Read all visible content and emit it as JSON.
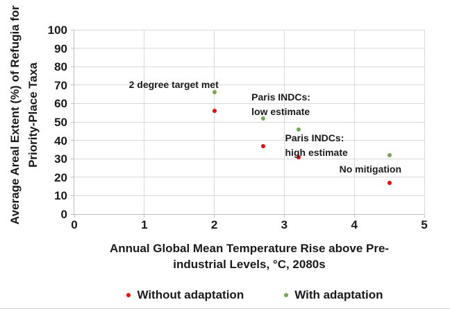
{
  "chart_data": {
    "type": "scatter",
    "title": "",
    "xlabel_lines": [
      "Annual Global Mean Temperature Rise above Pre-",
      "industrial Levels, °C, 2080s"
    ],
    "ylabel_lines": [
      "Average Areal Extent (%) of Refugia for",
      "Priority-Place Taxa"
    ],
    "xlabel": "Annual Global Mean Temperature Rise above Pre-industrial Levels, °C, 2080s",
    "ylabel": "Average Areal Extent (%) of Refugia for Priority-Place Taxa",
    "xlim": [
      0,
      5
    ],
    "ylim": [
      0,
      100
    ],
    "x_ticks": [
      0,
      1,
      2,
      3,
      4,
      5
    ],
    "y_ticks": [
      0,
      10,
      20,
      30,
      40,
      50,
      60,
      70,
      80,
      90,
      100
    ],
    "grid": true,
    "legend_position": "bottom",
    "scenarios": [
      {
        "annotation": "2 degree target met",
        "x": 2.0,
        "without_adaptation": 56,
        "with_adaptation": 66
      },
      {
        "annotation": "Paris INDCs:\nlow estimate",
        "x": 2.7,
        "without_adaptation": 37,
        "with_adaptation": 52
      },
      {
        "annotation": "Paris INDCs:\nhigh estimate",
        "x": 3.2,
        "without_adaptation": 31,
        "with_adaptation": 46
      },
      {
        "annotation": "No mitigation",
        "x": 4.5,
        "without_adaptation": 17,
        "with_adaptation": 32
      }
    ],
    "series": [
      {
        "name": "Without adaptation",
        "color": "#ff0000",
        "points": [
          [
            2.0,
            56
          ],
          [
            2.7,
            37
          ],
          [
            3.2,
            31
          ],
          [
            4.5,
            17
          ]
        ]
      },
      {
        "name": "With adaptation",
        "color": "#70ad47",
        "points": [
          [
            2.0,
            66
          ],
          [
            2.7,
            52
          ],
          [
            3.2,
            46
          ],
          [
            4.5,
            32
          ]
        ]
      }
    ],
    "legend": {
      "items": [
        {
          "label": "Without adaptation",
          "color": "#ff0000"
        },
        {
          "label": "With adaptation",
          "color": "#70ad47"
        }
      ]
    }
  },
  "colors": {
    "gridline": "#d9d9d9",
    "axis": "#bfbfbf",
    "text": "#1a1a1a",
    "background": "#ffffff"
  }
}
